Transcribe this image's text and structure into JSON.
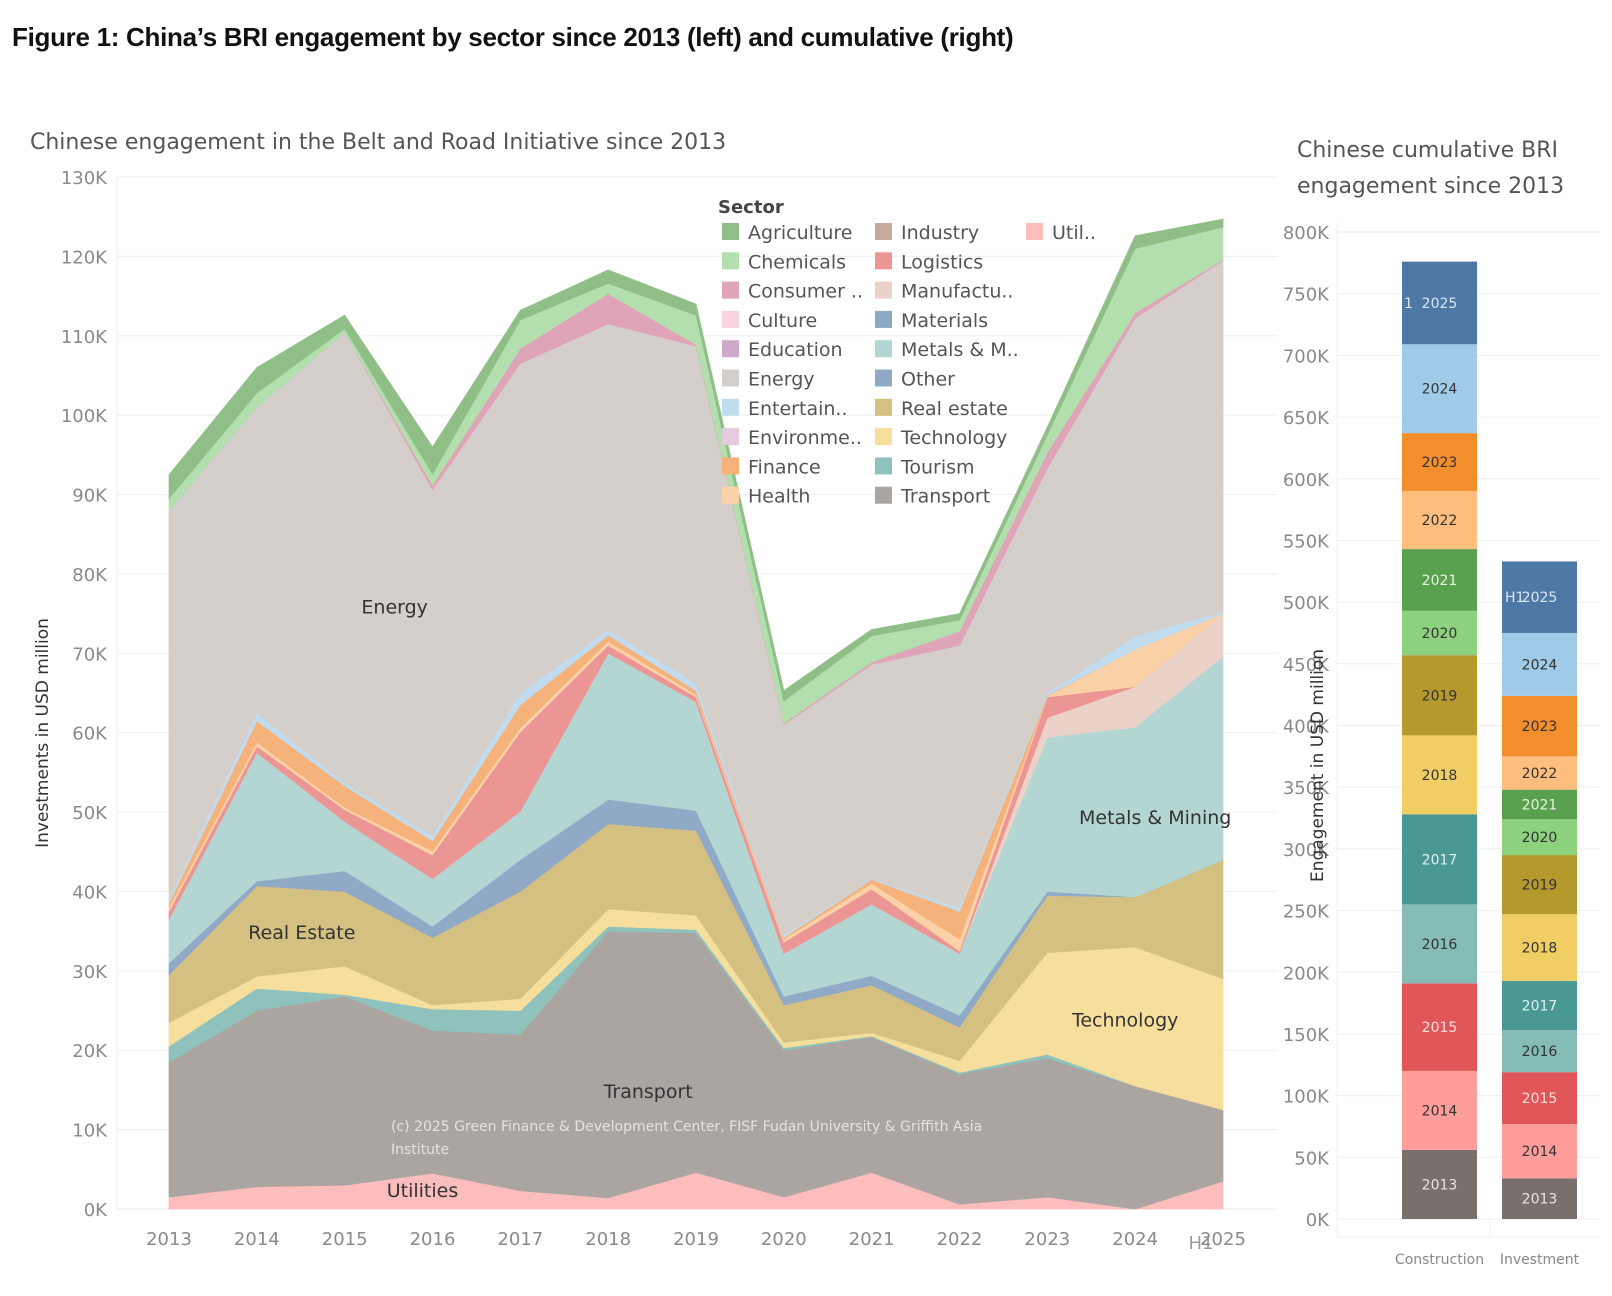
{
  "figure_title": "Figure 1: China’s BRI engagement by sector since 2013 (left) and cumulative (right)",
  "chart_data": [
    {
      "type": "area",
      "stacked": true,
      "title": "Chinese engagement in the Belt and Road Initiative since 2013",
      "xlabel": "",
      "ylabel": "Investments in USD million",
      "ylim": [
        0,
        130000
      ],
      "yticks": [
        "0K",
        "10K",
        "20K",
        "30K",
        "40K",
        "50K",
        "60K",
        "70K",
        "80K",
        "90K",
        "100K",
        "110K",
        "120K",
        "130K"
      ],
      "x": [
        "2013",
        "2014",
        "2015",
        "2016",
        "2017",
        "2018",
        "2019",
        "2020",
        "2021",
        "2022",
        "2023",
        "2024",
        "2025"
      ],
      "x_note": "H1",
      "grid": true,
      "legend": {
        "title": "Sector",
        "placement": "top-center",
        "entries": [
          {
            "label": "Agriculture",
            "color": "#8fbf87"
          },
          {
            "label": "Chemicals",
            "color": "#b3dfae"
          },
          {
            "label": "Consumer ..",
            "color": "#e0a4b8"
          },
          {
            "label": "Culture",
            "color": "#fbd3e0"
          },
          {
            "label": "Education",
            "color": "#cda8c8"
          },
          {
            "label": "Energy",
            "color": "#d5cfcc"
          },
          {
            "label": "Entertain..",
            "color": "#c0dcee"
          },
          {
            "label": "Environme..",
            "color": "#e4c9df"
          },
          {
            "label": "Finance",
            "color": "#f5b27a"
          },
          {
            "label": "Health",
            "color": "#fbd2a8"
          },
          {
            "label": "Industry",
            "color": "#c6a99c"
          },
          {
            "label": "Logistics",
            "color": "#ec9595"
          },
          {
            "label": "Manufactu..",
            "color": "#ebd2c9"
          },
          {
            "label": "Materials",
            "color": "#8ea9c6"
          },
          {
            "label": "Metals & M..",
            "color": "#b3d6d3"
          },
          {
            "label": "Other",
            "color": "#90a9c7"
          },
          {
            "label": "Real estate",
            "color": "#d4c182"
          },
          {
            "label": "Technology",
            "color": "#f6de9c"
          },
          {
            "label": "Tourism",
            "color": "#8fc2bc"
          },
          {
            "label": "Transport",
            "color": "#aba5a2"
          },
          {
            "label": "Util..",
            "color": "#fcbdbd"
          }
        ]
      },
      "series": [
        {
          "name": "Utilities",
          "color": "#fcbdbd",
          "values": [
            1500,
            2800,
            3000,
            4500,
            2300,
            1400,
            4600,
            1500,
            4600,
            600,
            1500,
            0,
            3500
          ]
        },
        {
          "name": "Transport",
          "color": "#aba5a2",
          "values": [
            17000,
            22200,
            23800,
            18000,
            19700,
            33600,
            30200,
            18500,
            17100,
            16400,
            17500,
            15500,
            9000
          ]
        },
        {
          "name": "Tourism",
          "color": "#8fc2bc",
          "values": [
            2000,
            2800,
            200,
            2700,
            3000,
            600,
            400,
            300,
            100,
            200,
            500,
            0,
            0
          ]
        },
        {
          "name": "Technology",
          "color": "#f6de9c",
          "values": [
            3000,
            1500,
            3600,
            500,
            1500,
            2200,
            1800,
            700,
            400,
            1500,
            12800,
            17500,
            16500
          ]
        },
        {
          "name": "Real estate",
          "color": "#d4c182",
          "values": [
            6000,
            11400,
            9400,
            8500,
            13500,
            10700,
            10700,
            4700,
            6000,
            4200,
            7200,
            6300,
            15000
          ]
        },
        {
          "name": "Other",
          "color": "#90a9c7",
          "values": [
            1500,
            600,
            2600,
            1400,
            4000,
            3100,
            2500,
            1100,
            1200,
            1500,
            500,
            0,
            0
          ]
        },
        {
          "name": "Metals & Mining",
          "color": "#b3d6d3",
          "values": [
            5500,
            16200,
            6200,
            6000,
            6100,
            18400,
            13700,
            5400,
            9000,
            7800,
            19400,
            21400,
            25600
          ]
        },
        {
          "name": "Manufacturing",
          "color": "#ebd2c9",
          "values": [
            0,
            0,
            0,
            0,
            0,
            0,
            0,
            0,
            0,
            0,
            2500,
            5100,
            5400
          ]
        },
        {
          "name": "Logistics",
          "color": "#ec9595",
          "values": [
            1000,
            800,
            1500,
            3000,
            10000,
            1000,
            600,
            1400,
            1900,
            300,
            2600,
            0,
            0
          ]
        },
        {
          "name": "Health",
          "color": "#fbd2a8",
          "values": [
            500,
            500,
            300,
            500,
            500,
            500,
            300,
            400,
            700,
            1500,
            100,
            4700,
            0
          ]
        },
        {
          "name": "Finance",
          "color": "#f5b27a",
          "values": [
            500,
            2700,
            2700,
            1300,
            2900,
            800,
            500,
            200,
            500,
            3500,
            100,
            0,
            0
          ]
        },
        {
          "name": "Entertainment",
          "color": "#c0dcee",
          "values": [
            500,
            1000,
            400,
            600,
            1500,
            700,
            900,
            300,
            100,
            500,
            300,
            1700,
            200
          ]
        },
        {
          "name": "Energy",
          "color": "#d5cfcc",
          "values": [
            49000,
            38500,
            56700,
            43600,
            41500,
            38500,
            42500,
            26500,
            27000,
            33000,
            28300,
            40000,
            44300
          ]
        },
        {
          "name": "Consumer",
          "color": "#e0a4b8",
          "values": [
            0,
            0,
            0,
            600,
            1900,
            3800,
            200,
            200,
            300,
            1800,
            2000,
            700,
            100
          ]
        },
        {
          "name": "Chemicals",
          "color": "#b3dfae",
          "values": [
            1500,
            1800,
            500,
            1400,
            3600,
            1300,
            3700,
            2800,
            3300,
            1400,
            2200,
            8100,
            4100
          ]
        },
        {
          "name": "Agriculture",
          "color": "#8fbf87",
          "values": [
            3000,
            3200,
            1700,
            3400,
            1200,
            1700,
            1400,
            1300,
            800,
            800,
            1000,
            1600,
            1000
          ]
        }
      ],
      "totals": [
        92500,
        106000,
        112600,
        96000,
        113200,
        118300,
        114000,
        65300,
        73000,
        75000,
        96000,
        122600,
        124700
      ],
      "annotations": [
        {
          "text": "Energy",
          "x": "2015",
          "y": 75000
        },
        {
          "text": "Real Estate",
          "x": "2014",
          "y": 34000
        },
        {
          "text": "Transport",
          "x": "2018",
          "y": 14000
        },
        {
          "text": "Utilities",
          "x": "2016",
          "y": 1500
        },
        {
          "text": "Metals & Mining",
          "x": "2024",
          "y": 48500
        },
        {
          "text": "Technology",
          "x": "2024",
          "y": 23000
        }
      ],
      "credit": [
        "(c) 2025 Green Finance & Development Center, FISF Fudan University &  Griffith Asia",
        "Institute"
      ]
    },
    {
      "type": "bar",
      "stacked": true,
      "title": "Chinese cumulative BRI engagement since 2013",
      "title_lines": [
        "Chinese cumulative BRI",
        "engagement since 2013"
      ],
      "xlabel": "",
      "ylabel": "Engagement in USD million",
      "ylim": [
        0,
        800000
      ],
      "yticks": [
        "0K",
        "50K",
        "100K",
        "150K",
        "200K",
        "250K",
        "300K",
        "350K",
        "400K",
        "450K",
        "500K",
        "550K",
        "600K",
        "650K",
        "700K",
        "750K",
        "800K"
      ],
      "categories": [
        "Construction",
        "Investment"
      ],
      "grid": true,
      "segments": [
        {
          "name": "2013",
          "color": "#79706e",
          "text_color": "#e8e4e2",
          "values": [
            56000,
            33000
          ]
        },
        {
          "name": "2014",
          "color": "#ff9d9a",
          "text_color": "#333333",
          "values": [
            64000,
            44000
          ]
        },
        {
          "name": "2015",
          "color": "#e15759",
          "text_color": "#fbdede",
          "values": [
            71000,
            42000
          ]
        },
        {
          "name": "2016",
          "color": "#86bcb6",
          "text_color": "#333333",
          "values": [
            64000,
            34000
          ]
        },
        {
          "name": "2017",
          "color": "#499894",
          "text_color": "#e0f0ee",
          "values": [
            73000,
            40000
          ]
        },
        {
          "name": "2018",
          "color": "#f1ce63",
          "text_color": "#333333",
          "values": [
            64000,
            54000
          ]
        },
        {
          "name": "2019",
          "color": "#b6992d",
          "text_color": "#333333",
          "values": [
            65000,
            48000
          ]
        },
        {
          "name": "2020",
          "color": "#8cd17d",
          "text_color": "#333333",
          "values": [
            36000,
            29000
          ]
        },
        {
          "name": "2021",
          "color": "#59a14f",
          "text_color": "#e6f4e2",
          "values": [
            50000,
            24000
          ]
        },
        {
          "name": "2022",
          "color": "#ffbe7d",
          "text_color": "#333333",
          "values": [
            47000,
            27000
          ]
        },
        {
          "name": "2023",
          "color": "#f28e2b",
          "text_color": "#333333",
          "values": [
            47000,
            49000
          ]
        },
        {
          "name": "2024",
          "color": "#a0cbe8",
          "text_color": "#333333",
          "values": [
            72000,
            51000
          ]
        },
        {
          "name": "2025",
          "color": "#4e79a7",
          "text_color": "#dce6f2",
          "values": [
            67000,
            58000
          ],
          "prefix": [
            "1",
            "H1"
          ]
        }
      ],
      "totals": [
        776000,
        533000
      ]
    }
  ]
}
